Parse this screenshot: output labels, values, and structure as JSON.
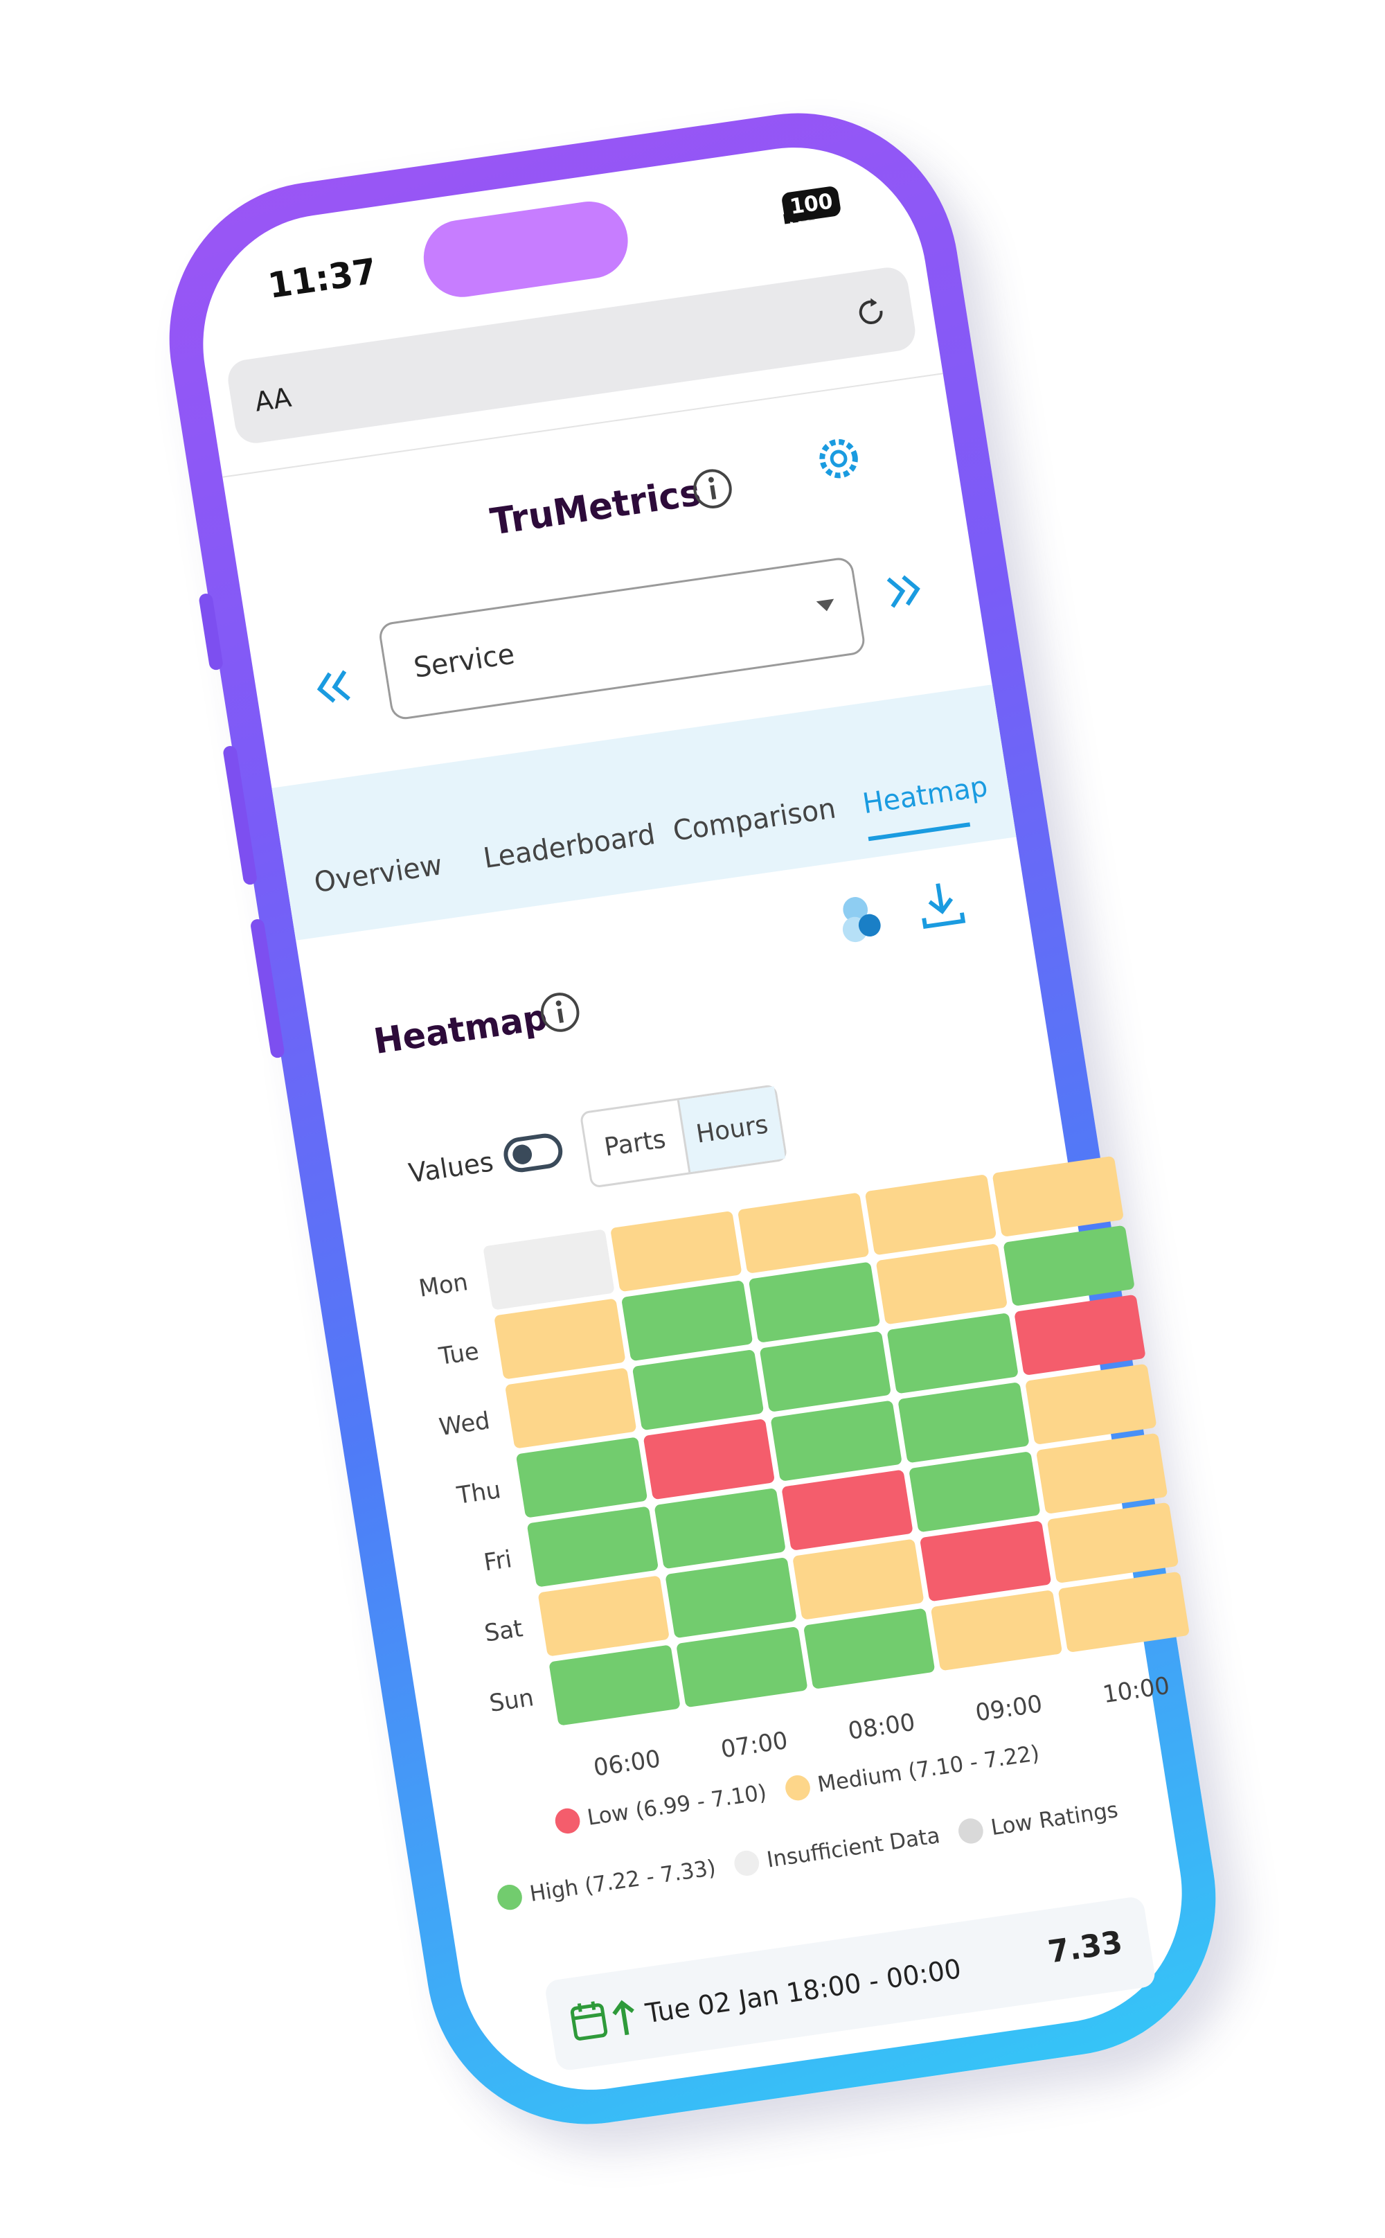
{
  "status_bar": {
    "time": "11:37",
    "battery": "100"
  },
  "browser": {
    "text_size": "AA"
  },
  "header": {
    "title": "TruMetrics"
  },
  "selector": {
    "value": "Service"
  },
  "tabs": {
    "items": [
      "Overview",
      "Leaderboard",
      "Comparison",
      "Heatmap"
    ],
    "active": "Heatmap"
  },
  "card": {
    "title": "Heatmap",
    "values_toggle": "Values",
    "segments": [
      "Parts",
      "Hours"
    ]
  },
  "heatmap": {
    "days": [
      "Mon",
      "Tue",
      "Wed",
      "Thu",
      "Fri",
      "Sat",
      "Sun"
    ],
    "hours": [
      "06:00",
      "07:00",
      "08:00",
      "09:00",
      "10:00"
    ],
    "cells": [
      [
        "#eeeeee",
        "#fdd68a",
        "#fdd68a",
        "#fdd68a",
        "#fdd68a"
      ],
      [
        "#fdd68a",
        "#72cc6e",
        "#72cc6e",
        "#fdd68a",
        "#72cc6e"
      ],
      [
        "#fdd68a",
        "#72cc6e",
        "#72cc6e",
        "#72cc6e",
        "#f45d6c"
      ],
      [
        "#72cc6e",
        "#f45d6c",
        "#72cc6e",
        "#72cc6e",
        "#fdd68a"
      ],
      [
        "#72cc6e",
        "#72cc6e",
        "#f45d6c",
        "#72cc6e",
        "#fdd68a"
      ],
      [
        "#fdd68a",
        "#72cc6e",
        "#fdd68a",
        "#f45d6c",
        "#fdd68a"
      ],
      [
        "#72cc6e",
        "#72cc6e",
        "#72cc6e",
        "#fdd68a",
        "#fdd68a"
      ]
    ]
  },
  "legend": [
    {
      "name": "Low (6.99 - 7.10)",
      "color": "#f45d6c"
    },
    {
      "name": "Medium (7.10 - 7.22)",
      "color": "#fdd68a"
    },
    {
      "name": "High (7.22 - 7.33)",
      "color": "#72cc6e"
    },
    {
      "name": "Insufficient Data",
      "color": "#eeeeee"
    },
    {
      "name": "Low Ratings",
      "color": "#d9d9d9"
    }
  ],
  "footer": {
    "period": "Tue 02 Jan 18:00 - 00:00",
    "value": "7.33"
  }
}
